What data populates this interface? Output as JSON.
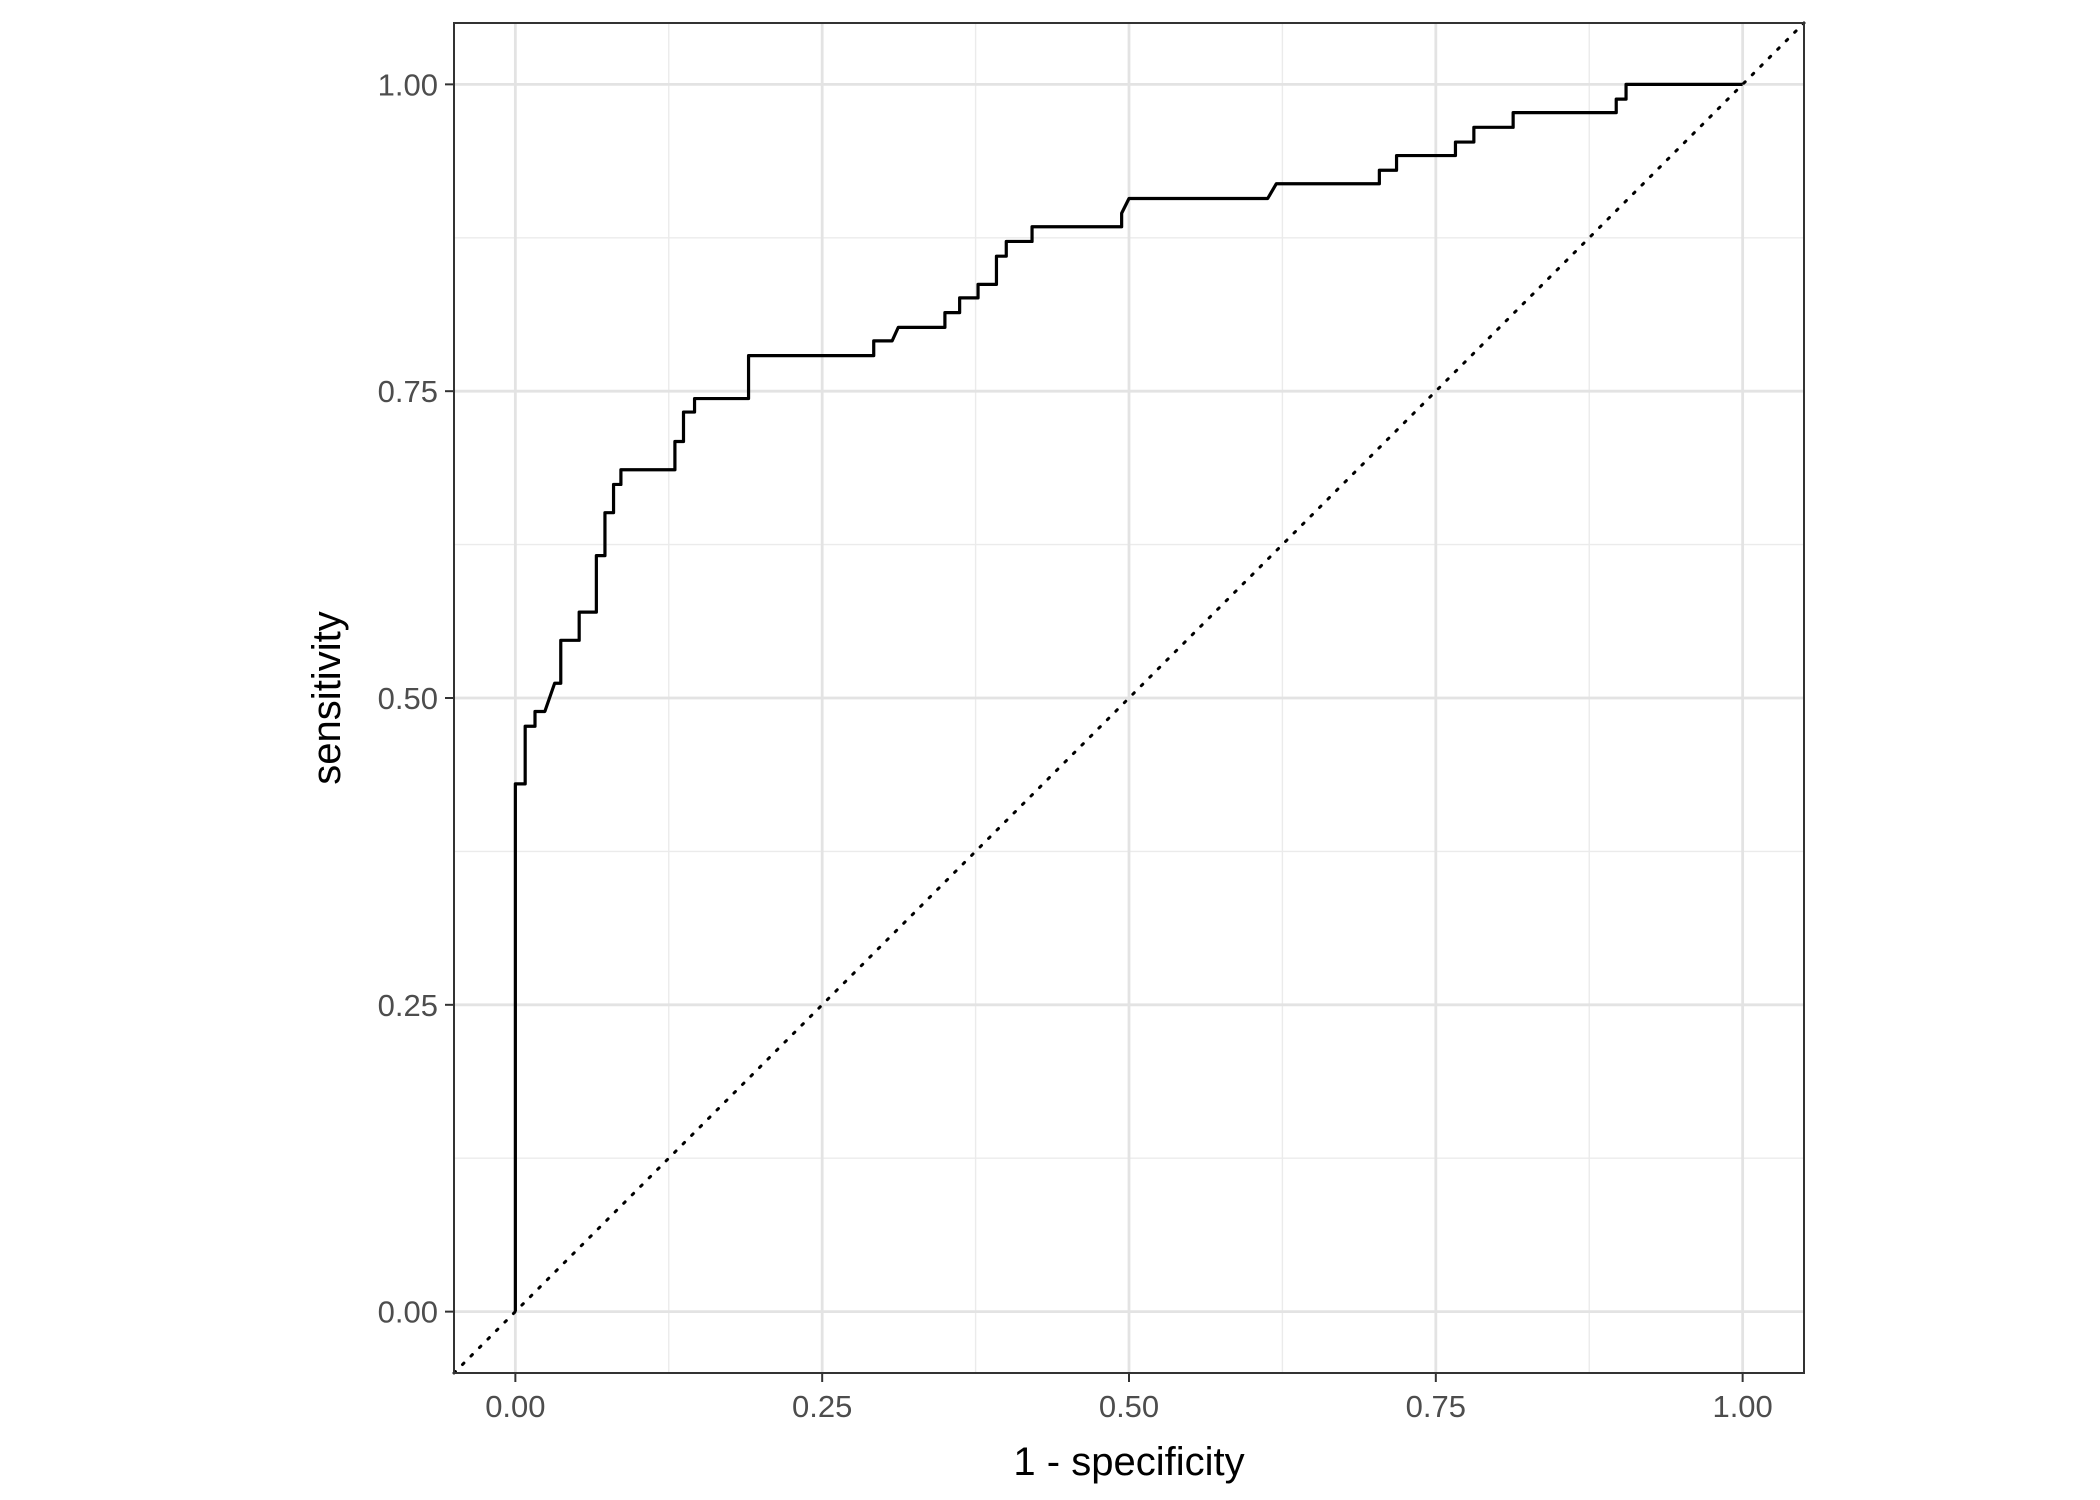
{
  "chart_data": {
    "type": "line",
    "title": "",
    "xlabel": "1 - specificity",
    "ylabel": "sensitivity",
    "xlim": [
      -0.05,
      1.05
    ],
    "ylim": [
      -0.05,
      1.05
    ],
    "x_ticks": [
      0,
      0.25,
      0.5,
      0.75,
      1
    ],
    "y_ticks": [
      0,
      0.25,
      0.5,
      0.75,
      1
    ],
    "x_tick_labels": [
      "0.00",
      "0.25",
      "0.50",
      "0.75",
      "1.00"
    ],
    "y_tick_labels": [
      "0.00",
      "0.25",
      "0.50",
      "0.75",
      "1.00"
    ],
    "grid": true,
    "legend": "none",
    "series": [
      {
        "style": "solid",
        "color": "#000000",
        "points": [
          [
            0,
            0
          ],
          [
            0,
            0.43
          ],
          [
            0.008,
            0.43
          ],
          [
            0.008,
            0.477
          ],
          [
            0.016,
            0.477
          ],
          [
            0.016,
            0.489
          ],
          [
            0.024,
            0.489
          ],
          [
            0.032,
            0.512
          ],
          [
            0.037,
            0.512
          ],
          [
            0.037,
            0.547
          ],
          [
            0.052,
            0.547
          ],
          [
            0.052,
            0.57
          ],
          [
            0.066,
            0.57
          ],
          [
            0.066,
            0.616
          ],
          [
            0.073,
            0.616
          ],
          [
            0.073,
            0.651
          ],
          [
            0.08,
            0.651
          ],
          [
            0.08,
            0.674
          ],
          [
            0.086,
            0.674
          ],
          [
            0.086,
            0.686
          ],
          [
            0.13,
            0.686
          ],
          [
            0.13,
            0.709
          ],
          [
            0.137,
            0.709
          ],
          [
            0.137,
            0.733
          ],
          [
            0.146,
            0.733
          ],
          [
            0.146,
            0.744
          ],
          [
            0.19,
            0.744
          ],
          [
            0.19,
            0.779
          ],
          [
            0.292,
            0.779
          ],
          [
            0.292,
            0.791
          ],
          [
            0.307,
            0.791
          ],
          [
            0.312,
            0.802
          ],
          [
            0.35,
            0.802
          ],
          [
            0.35,
            0.814
          ],
          [
            0.362,
            0.814
          ],
          [
            0.362,
            0.826
          ],
          [
            0.377,
            0.826
          ],
          [
            0.377,
            0.837
          ],
          [
            0.392,
            0.837
          ],
          [
            0.392,
            0.86
          ],
          [
            0.4,
            0.86
          ],
          [
            0.4,
            0.872
          ],
          [
            0.421,
            0.872
          ],
          [
            0.421,
            0.884
          ],
          [
            0.494,
            0.884
          ],
          [
            0.494,
            0.895
          ],
          [
            0.5,
            0.907
          ],
          [
            0.613,
            0.907
          ],
          [
            0.62,
            0.919
          ],
          [
            0.704,
            0.919
          ],
          [
            0.704,
            0.93
          ],
          [
            0.718,
            0.93
          ],
          [
            0.718,
            0.942
          ],
          [
            0.766,
            0.942
          ],
          [
            0.766,
            0.953
          ],
          [
            0.781,
            0.953
          ],
          [
            0.781,
            0.965
          ],
          [
            0.813,
            0.965
          ],
          [
            0.813,
            0.977
          ],
          [
            0.897,
            0.977
          ],
          [
            0.897,
            0.988
          ],
          [
            0.905,
            0.988
          ],
          [
            0.905,
            1
          ],
          [
            1,
            1
          ]
        ]
      },
      {
        "style": "dotted",
        "color": "#000000",
        "points": [
          [
            -0.05,
            -0.05
          ],
          [
            1.05,
            1.05
          ]
        ]
      }
    ]
  }
}
